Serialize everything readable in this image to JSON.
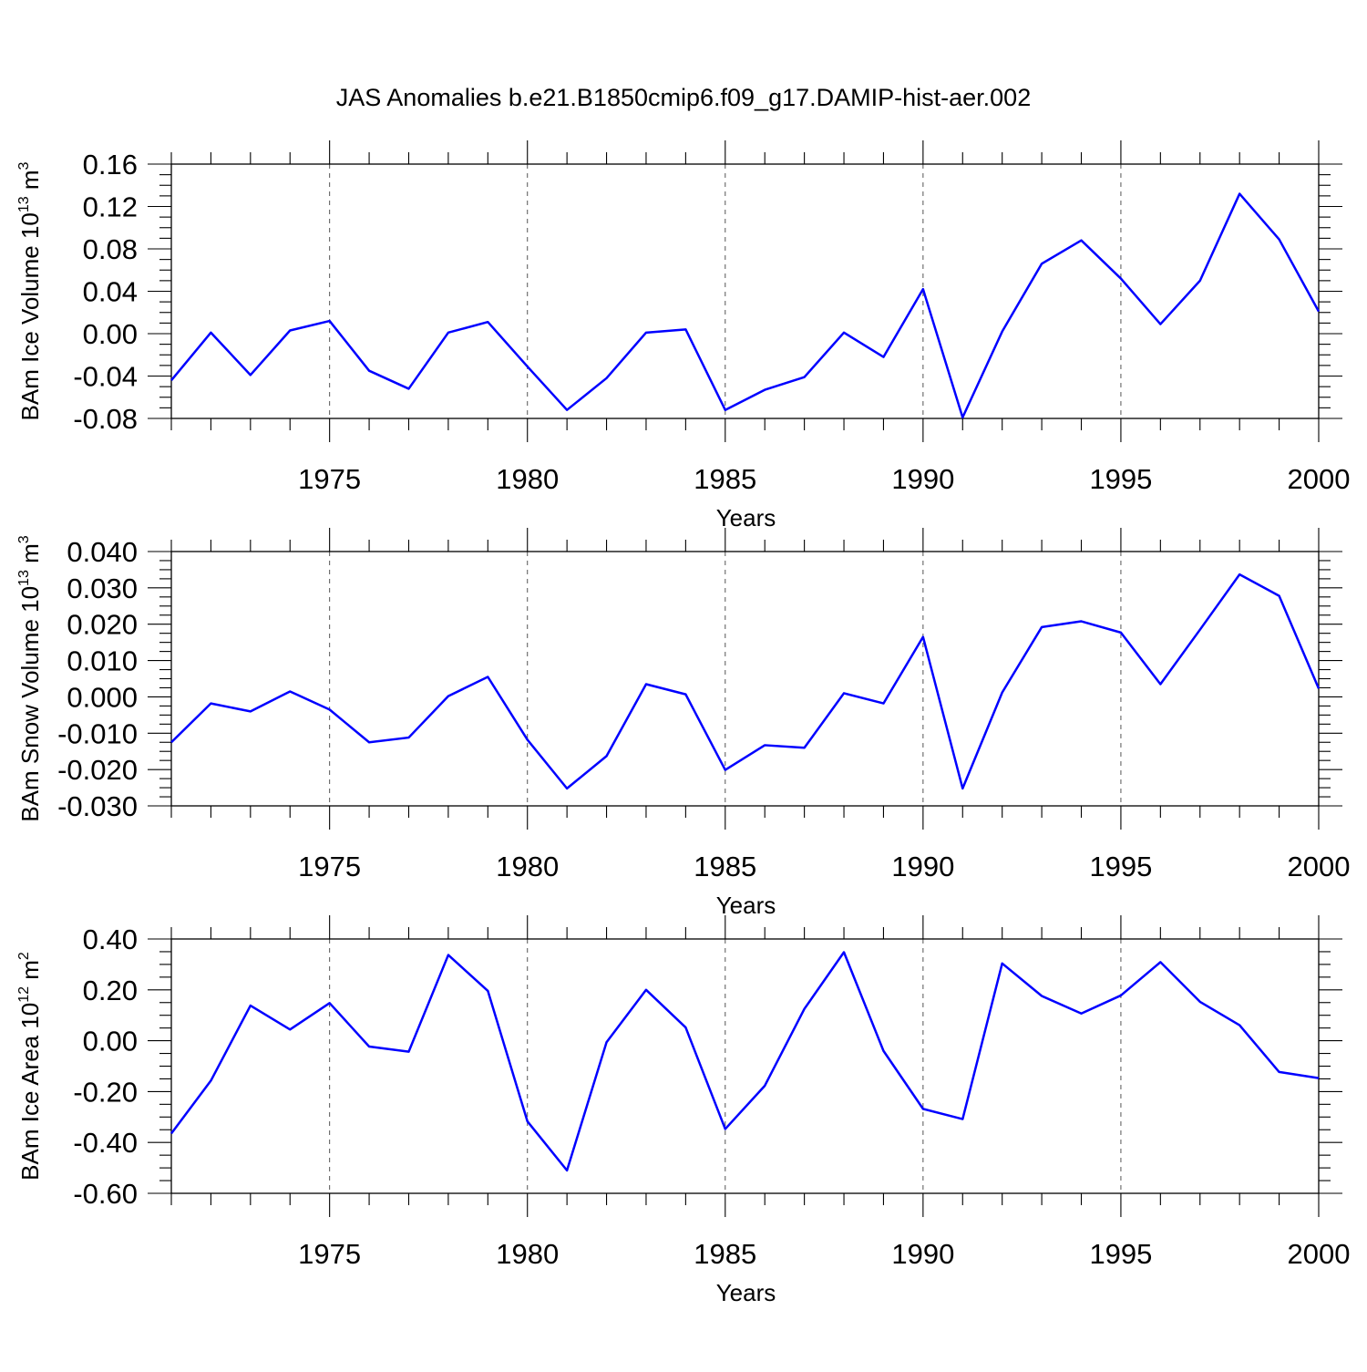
{
  "chart_data": {
    "title": "JAS Anomalies b.e21.B1850cmip6.f09_g17.DAMIP-hist-aer.002",
    "series_color": "#0000ff",
    "panels": [
      {
        "type": "line",
        "name": "ice-volume",
        "ylabel_main": "BAm Ice Volume 10",
        "ylabel_exp": "13",
        "ylabel_unit": " m",
        "ylabel_unit_exp": "3",
        "xlabel": "Years",
        "xlim": [
          1971,
          2000
        ],
        "ylim": [
          -0.08,
          0.16
        ],
        "yticks": [
          "0.16",
          "0.12",
          "0.08",
          "0.04",
          "0.00",
          "-0.04",
          "-0.08"
        ],
        "xticks": [
          "1975",
          "1980",
          "1985",
          "1990",
          "1995",
          "2000"
        ],
        "grid": true,
        "x": [
          1971,
          1972,
          1973,
          1974,
          1975,
          1976,
          1977,
          1978,
          1979,
          1980,
          1981,
          1982,
          1983,
          1984,
          1985,
          1986,
          1987,
          1988,
          1989,
          1990,
          1991,
          1992,
          1993,
          1994,
          1995,
          1996,
          1997,
          1998,
          1999,
          2000
        ],
        "values": [
          -0.044,
          0.001,
          -0.039,
          0.003,
          0.012,
          -0.035,
          -0.052,
          0.001,
          0.011,
          -0.031,
          -0.072,
          -0.042,
          0.001,
          0.004,
          -0.072,
          -0.053,
          -0.041,
          0.001,
          -0.022,
          0.042,
          -0.079,
          0.002,
          0.066,
          0.088,
          0.052,
          0.009,
          0.05,
          0.132,
          0.089,
          0.021
        ]
      },
      {
        "type": "line",
        "name": "snow-volume",
        "ylabel_main": "BAm Snow Volume 10",
        "ylabel_exp": "13",
        "ylabel_unit": " m",
        "ylabel_unit_exp": "3",
        "xlabel": "Years",
        "xlim": [
          1971,
          2000
        ],
        "ylim": [
          -0.03,
          0.04
        ],
        "yticks": [
          "0.040",
          "0.030",
          "0.020",
          "0.010",
          "0.000",
          "-0.010",
          "-0.020",
          "-0.030"
        ],
        "xticks": [
          "1975",
          "1980",
          "1985",
          "1990",
          "1995",
          "2000"
        ],
        "grid": true,
        "x": [
          1971,
          1972,
          1973,
          1974,
          1975,
          1976,
          1977,
          1978,
          1979,
          1980,
          1981,
          1982,
          1983,
          1984,
          1985,
          1986,
          1987,
          1988,
          1989,
          1990,
          1991,
          1992,
          1993,
          1994,
          1995,
          1996,
          1997,
          1998,
          1999,
          2000
        ],
        "values": [
          -0.0125,
          -0.0018,
          -0.004,
          0.0015,
          -0.0035,
          -0.0125,
          -0.0112,
          0.0002,
          0.0055,
          -0.0118,
          -0.0252,
          -0.0163,
          0.0035,
          0.0007,
          -0.0201,
          -0.0133,
          -0.014,
          0.001,
          -0.0018,
          0.0165,
          -0.0252,
          0.0012,
          0.0192,
          0.0208,
          0.0177,
          0.0035,
          0.0185,
          0.0337,
          0.0278,
          0.0023
        ]
      },
      {
        "type": "line",
        "name": "ice-area",
        "ylabel_main": "BAm Ice Area 10",
        "ylabel_exp": "12",
        "ylabel_unit": " m",
        "ylabel_unit_exp": "2",
        "xlabel": "Years",
        "xlim": [
          1971,
          2000
        ],
        "ylim": [
          -0.6,
          0.4
        ],
        "yticks": [
          "0.40",
          "0.20",
          "0.00",
          "-0.20",
          "-0.40",
          "-0.60"
        ],
        "xticks": [
          "1975",
          "1980",
          "1985",
          "1990",
          "1995",
          "2000"
        ],
        "grid": true,
        "x": [
          1971,
          1972,
          1973,
          1974,
          1975,
          1976,
          1977,
          1978,
          1979,
          1980,
          1981,
          1982,
          1983,
          1984,
          1985,
          1986,
          1987,
          1988,
          1989,
          1990,
          1991,
          1992,
          1993,
          1994,
          1995,
          1996,
          1997,
          1998,
          1999,
          2000
        ],
        "values": [
          -0.365,
          -0.157,
          0.138,
          0.044,
          0.148,
          -0.023,
          -0.043,
          0.337,
          0.196,
          -0.317,
          -0.51,
          -0.006,
          0.2,
          0.052,
          -0.347,
          -0.177,
          0.125,
          0.348,
          -0.04,
          -0.268,
          -0.308,
          0.304,
          0.176,
          0.107,
          0.178,
          0.309,
          0.153,
          0.061,
          -0.123,
          -0.147
        ]
      }
    ]
  }
}
